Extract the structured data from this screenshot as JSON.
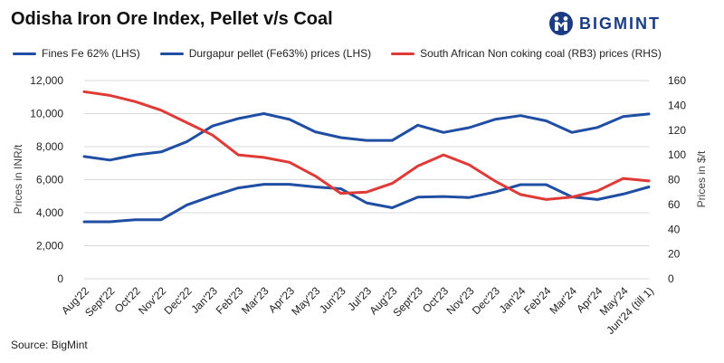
{
  "header": {
    "title": "Odisha Iron Ore Index, Pellet v/s Coal",
    "logo_text": "BIGMINT"
  },
  "footer": {
    "source": "Source: BigMint"
  },
  "colors": {
    "fines": "#1f4ea3",
    "pellet": "#1f4ea3",
    "coal": "#e03a36",
    "grid": "#d9d9d9",
    "brand": "#1b3c83"
  },
  "chart_data": {
    "type": "line",
    "title": "Odisha Iron Ore Index, Pellet v/s Coal",
    "ylabel_left": "Prices in INR/t",
    "ylabel_right": "Prices in $/t",
    "ylim_left": [
      0,
      12000
    ],
    "ylim_right": [
      0,
      160
    ],
    "yticks_left": [
      "0",
      "2,000",
      "4,000",
      "6,000",
      "8,000",
      "10,000",
      "12,000"
    ],
    "yticks_right": [
      "0",
      "20",
      "40",
      "60",
      "80",
      "100",
      "120",
      "140",
      "160"
    ],
    "grid": true,
    "legend_position": "top",
    "categories": [
      "Aug'22",
      "Sept'22",
      "Oct'22",
      "Nov'22",
      "Dec'22",
      "Jan'23",
      "Feb'23",
      "Mar'23",
      "Apr'23",
      "May'23",
      "Jun'23",
      "Jul'23",
      "Aug'23",
      "Sept'23",
      "Oct'23",
      "Nov'23",
      "Dec'23",
      "Jan'24",
      "Feb'24",
      "Mar'24",
      "Apr'24",
      "May'24",
      "Jun'24 (till 1)"
    ],
    "series": [
      {
        "name": "Fines Fe 62% (LHS)",
        "axis": "left",
        "values": [
          3450,
          3450,
          3580,
          3580,
          4470,
          5020,
          5500,
          5720,
          5720,
          5560,
          5450,
          4600,
          4300,
          4950,
          4980,
          4920,
          5250,
          5700,
          5700,
          4960,
          4800,
          5130,
          5560
        ]
      },
      {
        "name": "Durgapur pellet (Fe63%) prices (LHS)",
        "axis": "left",
        "values": [
          7400,
          7190,
          7500,
          7680,
          8300,
          9250,
          9700,
          10000,
          9650,
          8900,
          8550,
          8380,
          8380,
          9300,
          8860,
          9150,
          9650,
          9880,
          9560,
          8860,
          9160,
          9820,
          9980
        ]
      },
      {
        "name": "South African Non coking coal (RB3) prices (RHS)",
        "axis": "right",
        "values": [
          151,
          148,
          143,
          136,
          126,
          116,
          100,
          98,
          94,
          83,
          69,
          70,
          77,
          91,
          100,
          92,
          79,
          68,
          64,
          66,
          71,
          81,
          79
        ]
      }
    ]
  }
}
